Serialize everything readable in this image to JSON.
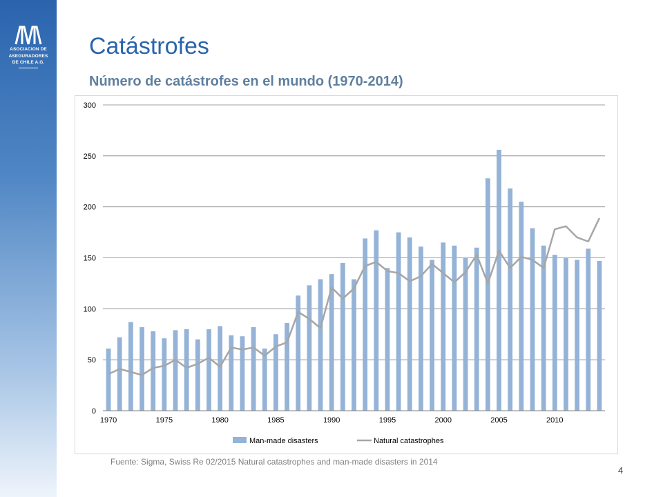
{
  "slide": {
    "title": "Catástrofes",
    "subtitle": "Número de catástrofes en el mundo (1970-2014)",
    "source": "Fuente: Sigma, Swiss Re 02/2015 Natural catastrophes and man-made disasters in 2014",
    "page_number": "4"
  },
  "logo": {
    "line1": "ASOCIACION DE",
    "line2": "ASEGURADORES",
    "line3": "DE CHILE A.G."
  },
  "colors": {
    "accent": "#2a64ad",
    "bar": "#95b3d7",
    "line": "#a6a6a6",
    "grid": "#808080"
  },
  "chart_data": {
    "type": "bar",
    "title": "",
    "xlabel": "",
    "ylabel": "",
    "x": [
      1970,
      1971,
      1972,
      1973,
      1974,
      1975,
      1976,
      1977,
      1978,
      1979,
      1980,
      1981,
      1982,
      1983,
      1984,
      1985,
      1986,
      1987,
      1988,
      1989,
      1990,
      1991,
      1992,
      1993,
      1994,
      1995,
      1996,
      1997,
      1998,
      1999,
      2000,
      2001,
      2002,
      2003,
      2004,
      2005,
      2006,
      2007,
      2008,
      2009,
      2010,
      2011,
      2012,
      2013,
      2014
    ],
    "x_tick_labels": [
      "1970",
      "1975",
      "1980",
      "1985",
      "1990",
      "1995",
      "2000",
      "2005",
      "2010"
    ],
    "ylim": [
      0,
      300
    ],
    "y_ticks": [
      0,
      50,
      100,
      150,
      200,
      250,
      300
    ],
    "grid": true,
    "legend_position": "bottom",
    "series": [
      {
        "name": "Man-made disasters",
        "type": "bar",
        "values": [
          61,
          72,
          87,
          82,
          78,
          71,
          79,
          80,
          70,
          80,
          83,
          74,
          73,
          82,
          61,
          75,
          86,
          113,
          123,
          129,
          134,
          145,
          129,
          169,
          177,
          140,
          175,
          170,
          161,
          148,
          165,
          162,
          150,
          160,
          228,
          256,
          218,
          205,
          179,
          162,
          153,
          150,
          148,
          159,
          147
        ]
      },
      {
        "name": "Natural catastrophes",
        "type": "line",
        "values": [
          36,
          41,
          38,
          35,
          42,
          44,
          50,
          42,
          46,
          52,
          43,
          62,
          60,
          62,
          54,
          63,
          67,
          97,
          90,
          81,
          121,
          110,
          120,
          142,
          146,
          137,
          135,
          127,
          132,
          144,
          135,
          126,
          136,
          153,
          125,
          157,
          140,
          151,
          148,
          140,
          178,
          181,
          170,
          166,
          189
        ]
      }
    ]
  }
}
